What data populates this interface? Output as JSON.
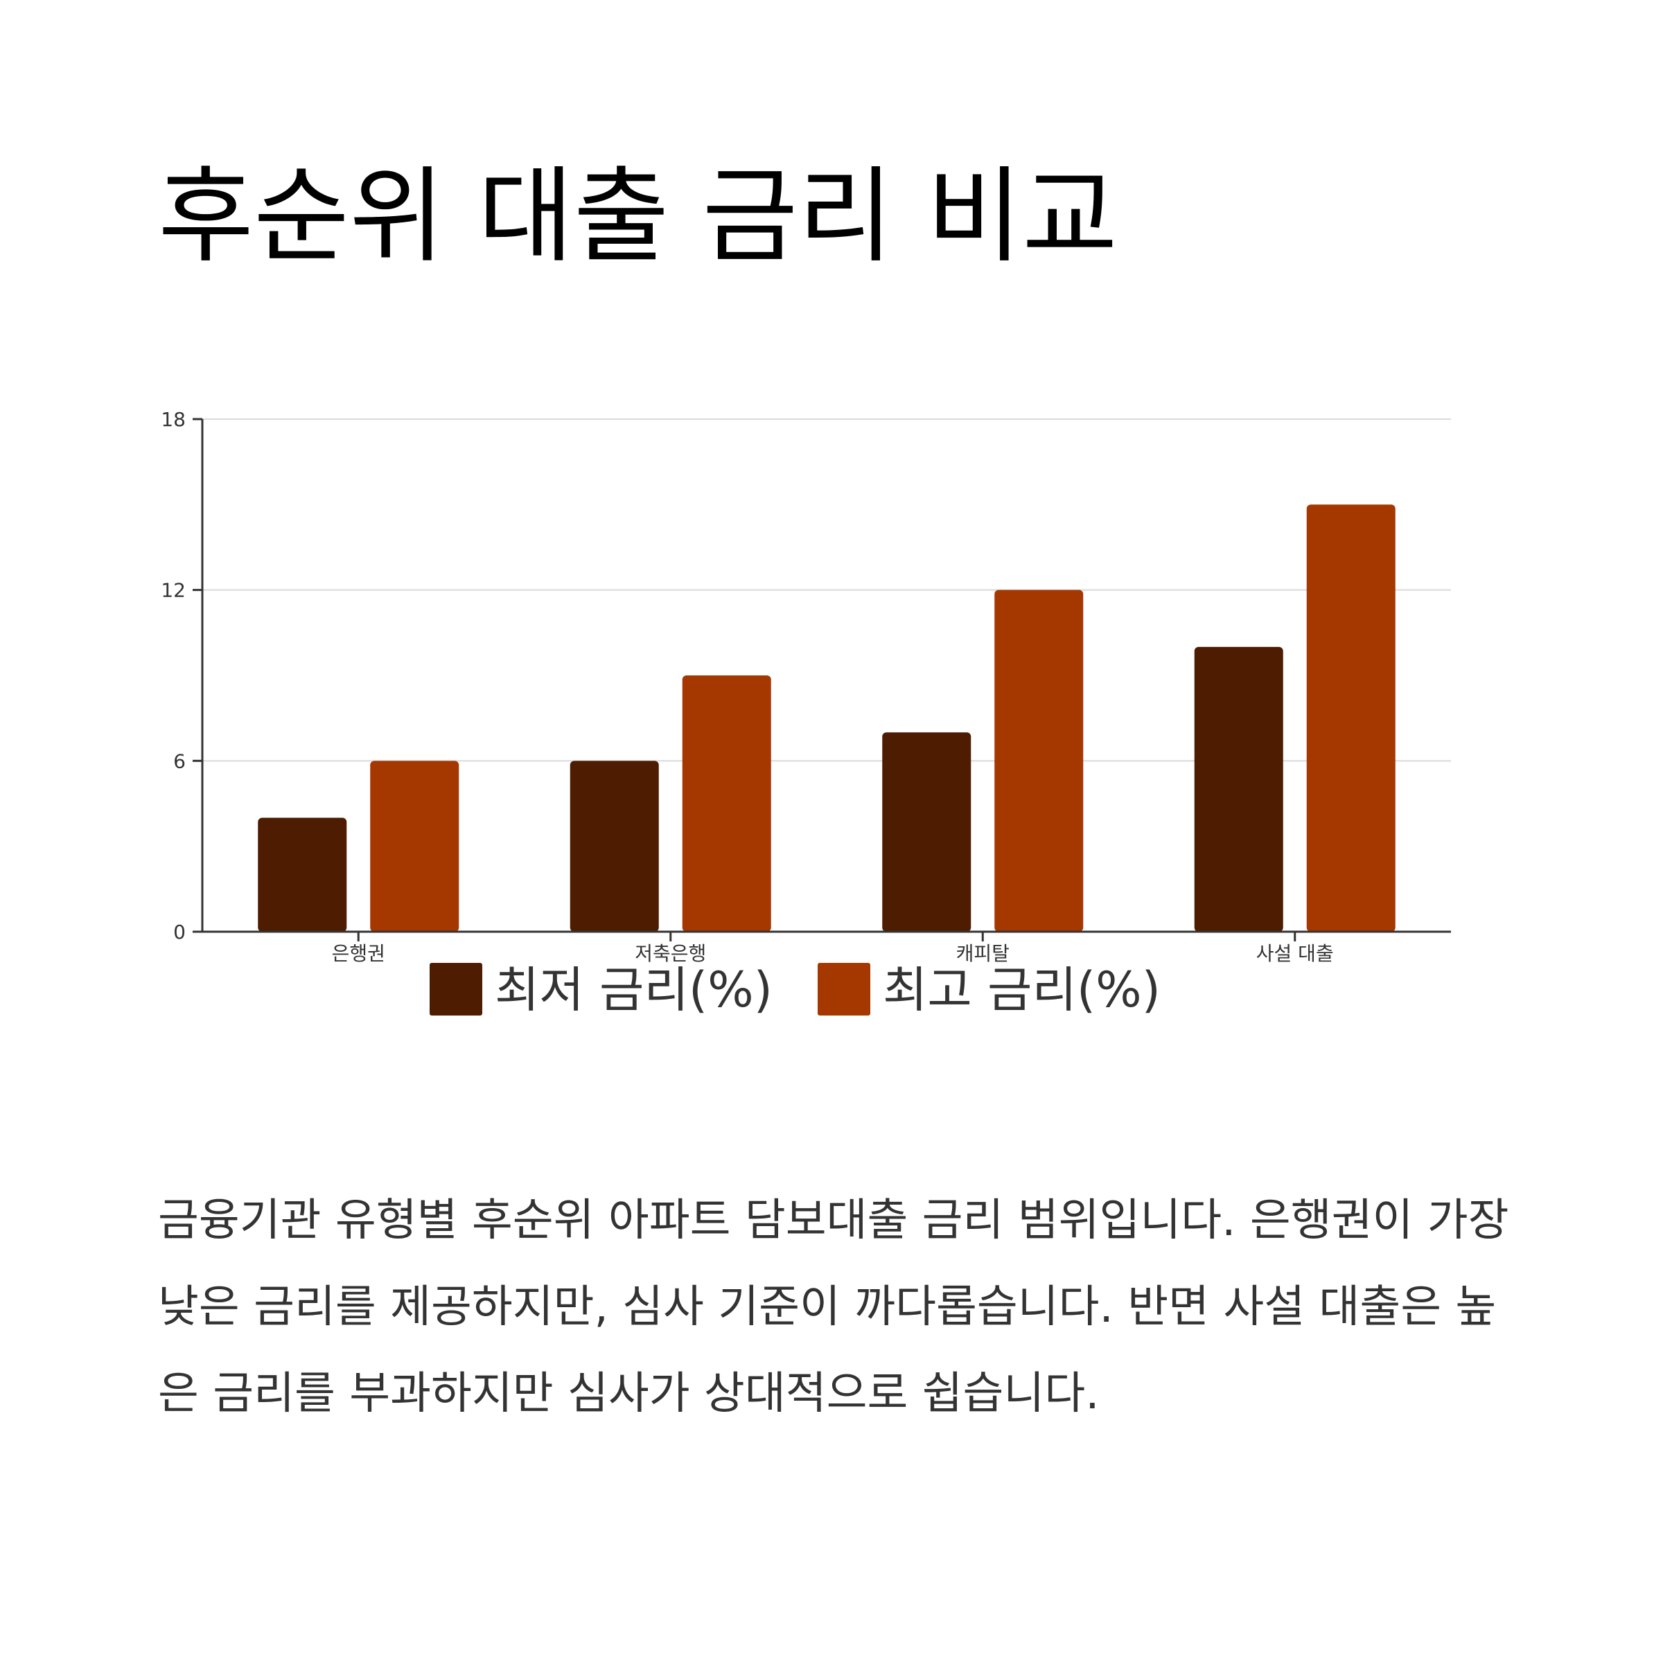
{
  "title": "후순위 대출 금리 비교",
  "chart_data": {
    "type": "bar",
    "categories": [
      "은행권",
      "저축은행",
      "캐피탈",
      "사설 대출"
    ],
    "series": [
      {
        "name": "최저 금리(%)",
        "values": [
          4,
          6,
          7,
          10
        ],
        "color": "#4e1c00"
      },
      {
        "name": "최고 금리(%)",
        "values": [
          6,
          9,
          12,
          15
        ],
        "color": "#a53700"
      }
    ],
    "yticks": [
      0,
      6,
      12,
      18
    ],
    "ylim": [
      0,
      18
    ],
    "grid": true,
    "legend_position": "bottom"
  },
  "description": "금융기관 유형별 후순위 아파트 담보대출 금리 범위입니다. 은행권이 가장 낮은 금리를 제공하지만, 심사 기준이 까다롭습니다. 반면 사설 대출은 높은 금리를 부과하지만 심사가 상대적으로 쉽습니다."
}
